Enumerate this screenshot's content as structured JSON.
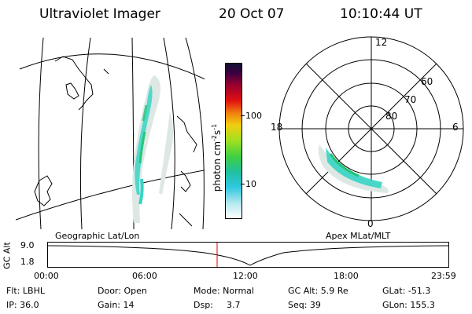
{
  "header": {
    "instrument": "Ultraviolet Imager",
    "date": "20 Oct 07",
    "time": "10:10:44 UT"
  },
  "colorbar": {
    "unit_label": "photon cm",
    "unit_exp1": "-2",
    "unit_mid": "s",
    "unit_exp2": "-1",
    "ticks": [
      "100",
      "10"
    ]
  },
  "polar": {
    "mlt_labels": {
      "top": "12",
      "left": "18",
      "right": "6",
      "bottom": "0"
    },
    "lat_labels": [
      "60",
      "70",
      "80"
    ]
  },
  "panels": {
    "left_caption": "Geographic Lat/Lon",
    "right_caption": "Apex MLat/MLT"
  },
  "timeline": {
    "axis_label": "GC Alt",
    "ylabels": [
      "9.0",
      "1.8"
    ],
    "xticks": [
      "00:00",
      "06:00",
      "12:00",
      "18:00",
      "23:59"
    ]
  },
  "info": {
    "row1": {
      "flt": "Flt: LBHL",
      "door": "Door: Open",
      "mode": "Mode: Normal",
      "gcalt": "GC Alt: 5.9 Re",
      "glat": "GLat: -51.3"
    },
    "row2": {
      "ip": "IP: 36.0",
      "gain": "Gain: 14",
      "dsp_label": "Dsp:",
      "dsp_value": "3.7",
      "seq": "Seq: 39",
      "glon": "GLon: 155.3"
    }
  },
  "colors": {
    "marker": "#e00000",
    "aurora_low": "#dde8e5",
    "aurora_mid": "#37d4c4",
    "aurora_high": "#21c472"
  }
}
